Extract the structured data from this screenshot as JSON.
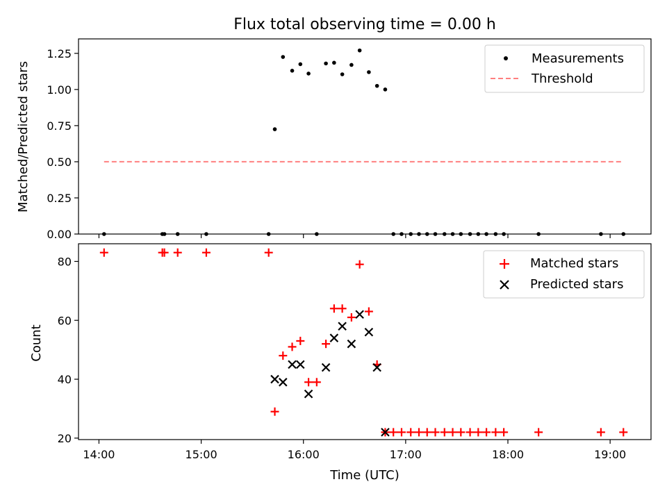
{
  "chart_data": [
    {
      "type": "scatter",
      "title": "Flux total observing time = 0.00 h",
      "xlabel": "",
      "ylabel": "Matched/Predicted stars",
      "xlim": [
        13.8,
        19.4
      ],
      "ylim": [
        0.0,
        1.35
      ],
      "yticks": [
        0.0,
        0.25,
        0.5,
        0.75,
        1.0,
        1.25
      ],
      "ytick_labels": [
        "0.00",
        "0.25",
        "0.50",
        "0.75",
        "1.00",
        "1.25"
      ],
      "legend": {
        "position": "top-right",
        "entries": [
          "Measurements",
          "Threshold"
        ]
      },
      "series": [
        {
          "name": "Measurements",
          "color": "#000000",
          "marker": "dot",
          "x": [
            14.05,
            14.62,
            14.64,
            14.77,
            15.05,
            15.66,
            15.72,
            15.8,
            15.89,
            15.97,
            16.05,
            16.13,
            16.22,
            16.3,
            16.38,
            16.47,
            16.55,
            16.64,
            16.72,
            16.8,
            16.88,
            16.96,
            17.05,
            17.13,
            17.21,
            17.29,
            17.38,
            17.46,
            17.54,
            17.63,
            17.71,
            17.79,
            17.88,
            17.96,
            18.3,
            18.91,
            19.13
          ],
          "y": [
            0,
            0,
            0,
            0,
            0,
            0,
            0.725,
            1.225,
            1.13,
            1.175,
            1.11,
            0,
            1.18,
            1.185,
            1.105,
            1.17,
            1.27,
            1.12,
            1.025,
            1.0,
            0,
            0,
            0,
            0,
            0,
            0,
            0,
            0,
            0,
            0,
            0,
            0,
            0,
            0,
            0,
            0,
            0
          ]
        },
        {
          "name": "Threshold",
          "color": "#ff7f7f",
          "style": "dashed-line",
          "x": [
            14.05,
            19.13
          ],
          "y": [
            0.5,
            0.5
          ]
        }
      ]
    },
    {
      "type": "scatter",
      "title": "",
      "xlabel": "Time (UTC)",
      "ylabel": "Count",
      "xlim": [
        13.8,
        19.4
      ],
      "ylim": [
        19.5,
        86
      ],
      "xticks": [
        14,
        15,
        16,
        17,
        18,
        19
      ],
      "xtick_labels": [
        "14:00",
        "15:00",
        "16:00",
        "17:00",
        "18:00",
        "19:00"
      ],
      "yticks": [
        20,
        40,
        60,
        80
      ],
      "ytick_labels": [
        "20",
        "40",
        "60",
        "80"
      ],
      "legend": {
        "position": "top-right",
        "entries": [
          "Matched stars",
          "Predicted stars"
        ]
      },
      "series": [
        {
          "name": "Matched stars",
          "color": "#ff0000",
          "marker": "plus",
          "x": [
            14.05,
            14.62,
            14.64,
            14.77,
            15.05,
            15.66,
            15.72,
            15.8,
            15.89,
            15.97,
            16.05,
            16.13,
            16.22,
            16.3,
            16.38,
            16.47,
            16.55,
            16.64,
            16.72,
            16.8,
            16.88,
            16.96,
            17.05,
            17.13,
            17.21,
            17.29,
            17.38,
            17.46,
            17.54,
            17.63,
            17.71,
            17.79,
            17.88,
            17.96,
            18.3,
            18.91,
            19.13
          ],
          "y": [
            83,
            83,
            83,
            83,
            83,
            83,
            29,
            48,
            51,
            53,
            39,
            39,
            52,
            64,
            64,
            61,
            79,
            63,
            45,
            22,
            22,
            22,
            22,
            22,
            22,
            22,
            22,
            22,
            22,
            22,
            22,
            22,
            22,
            22,
            22,
            22,
            22
          ]
        },
        {
          "name": "Predicted stars",
          "color": "#000000",
          "marker": "x",
          "x": [
            15.72,
            15.8,
            15.89,
            15.97,
            16.05,
            16.22,
            16.3,
            16.38,
            16.47,
            16.55,
            16.64,
            16.72,
            16.8
          ],
          "y": [
            40,
            39,
            45,
            45,
            35,
            44,
            54,
            58,
            52,
            62,
            56,
            44,
            22
          ]
        }
      ]
    }
  ]
}
